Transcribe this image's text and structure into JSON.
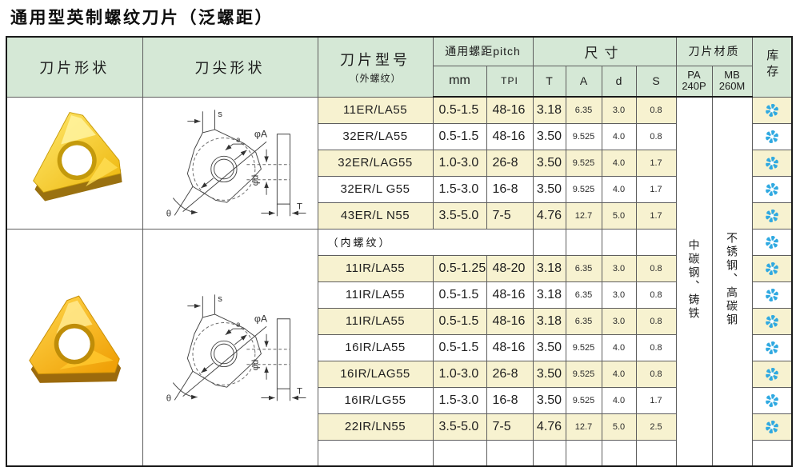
{
  "title": "通用型英制螺纹刀片（泛螺距）",
  "colors": {
    "header_bg": "#d5e8d6",
    "row_highlight": "#f7f2d0",
    "row_plain": "#ffffff",
    "outer_border": "#1a1a1a",
    "grid_line": "#5e5e5e",
    "stock_icon_blue": "#2fa9e1",
    "insert_yellow": "#f5c518",
    "insert_dark_gold": "#9a7110"
  },
  "header": {
    "shape": "刀片形状",
    "tip": "刀尖形状",
    "model": "刀片型号",
    "model_sub": "（外螺纹）",
    "pitch": "通用螺距pitch",
    "size": "尺寸",
    "material": "刀片材质",
    "stock": "库存",
    "mm": "mm",
    "tpi": "TPI",
    "t": "T",
    "a": "A",
    "d": "d",
    "s": "S",
    "pa1": "PA",
    "pa2": "240P",
    "mb1": "MB",
    "mb2": "260M"
  },
  "materials": {
    "pa": "中碳钢、铸铁",
    "mb": "不锈钢、高碳钢"
  },
  "icons": {
    "stock": "blue-asterisk-icon",
    "shape_external": "insert-photo-external",
    "shape_internal": "insert-photo-internal"
  },
  "drawing_labels": {
    "s": "s",
    "tip": "a",
    "phi_a": "φA",
    "phi_d": "φd",
    "t": "T",
    "theta": "θ"
  },
  "internal_section_label": "（内螺纹）",
  "rows": [
    {
      "type": "data",
      "model": "11ER/LA55",
      "mm": "0.5-1.5",
      "tpi": "48-16",
      "t": "3.18",
      "a": "6.35",
      "d": "3.0",
      "s": "0.8",
      "highlight": true,
      "stock": true
    },
    {
      "type": "data",
      "model": "32ER/LA55",
      "mm": "0.5-1.5",
      "tpi": "48-16",
      "t": "3.50",
      "a": "9.525",
      "d": "4.0",
      "s": "0.8",
      "highlight": false,
      "stock": true
    },
    {
      "type": "data",
      "model": "32ER/LAG55",
      "mm": "1.0-3.0",
      "tpi": "26-8",
      "t": "3.50",
      "a": "9.525",
      "d": "4.0",
      "s": "1.7",
      "highlight": true,
      "stock": true
    },
    {
      "type": "data",
      "model": "32ER/L G55",
      "mm": "1.5-3.0",
      "tpi": "16-8",
      "t": "3.50",
      "a": "9.525",
      "d": "4.0",
      "s": "1.7",
      "highlight": false,
      "stock": true
    },
    {
      "type": "data",
      "model": "43ER/L N55",
      "mm": "3.5-5.0",
      "tpi": "7-5",
      "t": "4.76",
      "a": "12.7",
      "d": "5.0",
      "s": "1.7",
      "highlight": true,
      "stock": true
    },
    {
      "type": "section",
      "label": "（内螺纹）",
      "highlight": false,
      "stock": true
    },
    {
      "type": "data",
      "model": "11IR/LA55",
      "mm": "0.5-1.25",
      "tpi": "48-20",
      "t": "3.18",
      "a": "6.35",
      "d": "3.0",
      "s": "0.8",
      "highlight": true,
      "stock": true
    },
    {
      "type": "data",
      "model": "11IR/LA55",
      "mm": "0.5-1.5",
      "tpi": "48-16",
      "t": "3.18",
      "a": "6.35",
      "d": "3.0",
      "s": "0.8",
      "highlight": false,
      "stock": true
    },
    {
      "type": "data",
      "model": "11IR/LA55",
      "mm": "0.5-1.5",
      "tpi": "48-16",
      "t": "3.18",
      "a": "6.35",
      "d": "3.0",
      "s": "0.8",
      "highlight": true,
      "stock": true
    },
    {
      "type": "data",
      "model": "16IR/LA55",
      "mm": "0.5-1.5",
      "tpi": "48-16",
      "t": "3.50",
      "a": "9.525",
      "d": "4.0",
      "s": "0.8",
      "highlight": false,
      "stock": true
    },
    {
      "type": "data",
      "model": "16IR/LAG55",
      "mm": "1.0-3.0",
      "tpi": "26-8",
      "t": "3.50",
      "a": "9.525",
      "d": "4.0",
      "s": "0.8",
      "highlight": true,
      "stock": true
    },
    {
      "type": "data",
      "model": "16IR/LG55",
      "mm": "1.5-3.0",
      "tpi": "16-8",
      "t": "3.50",
      "a": "9.525",
      "d": "4.0",
      "s": "1.7",
      "highlight": false,
      "stock": true
    },
    {
      "type": "data",
      "model": "22IR/LN55",
      "mm": "3.5-5.0",
      "tpi": "7-5",
      "t": "4.76",
      "a": "12.7",
      "d": "5.0",
      "s": "2.5",
      "highlight": true,
      "stock": true
    },
    {
      "type": "empty",
      "highlight": false,
      "stock": false
    }
  ]
}
